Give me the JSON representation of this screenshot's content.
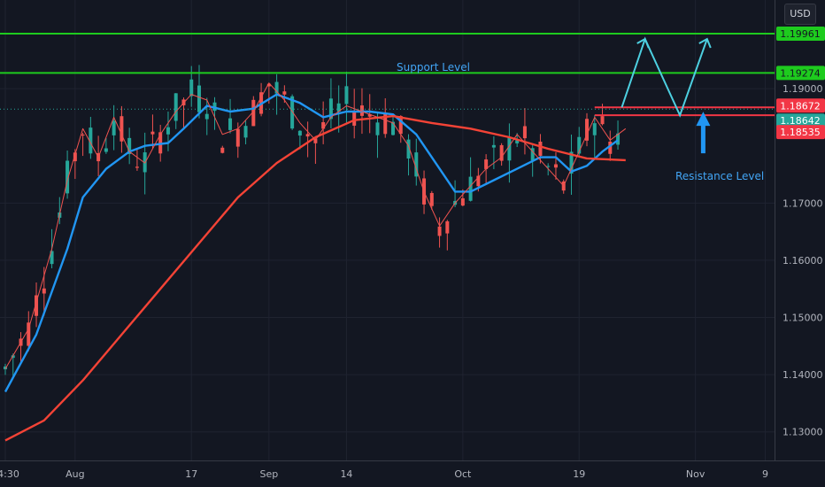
{
  "currency_button": "USD",
  "chart_data": {
    "type": "candlestick",
    "y_range": [
      1.125,
      1.2055
    ],
    "y_ticks": [
      {
        "value": 1.19,
        "label": "1.19000"
      },
      {
        "value": 1.17,
        "label": "1.17000"
      },
      {
        "value": 1.16,
        "label": "1.16000"
      },
      {
        "value": 1.15,
        "label": "1.15000"
      },
      {
        "value": 1.14,
        "label": "1.14000"
      },
      {
        "value": 1.13,
        "label": "1.13000"
      }
    ],
    "x_ticks": [
      {
        "index": 0,
        "label": "14:30"
      },
      {
        "index": 9,
        "label": "Aug"
      },
      {
        "index": 24,
        "label": "17"
      },
      {
        "index": 34,
        "label": "Sep"
      },
      {
        "index": 44,
        "label": "14"
      },
      {
        "index": 59,
        "label": "Oct"
      },
      {
        "index": 74,
        "label": "19"
      },
      {
        "index": 89,
        "label": "Nov"
      },
      {
        "index": 98,
        "label": "9"
      }
    ],
    "series": [
      {
        "color": "#2196f3",
        "width": 2.4,
        "points": [
          [
            0,
            1.137
          ],
          [
            4,
            1.147
          ],
          [
            8,
            1.162
          ],
          [
            10,
            1.171
          ],
          [
            13,
            1.176
          ],
          [
            16,
            1.179
          ],
          [
            18,
            1.18
          ],
          [
            21,
            1.1805
          ],
          [
            23,
            1.183
          ],
          [
            26,
            1.187
          ],
          [
            29,
            1.186
          ],
          [
            32,
            1.1865
          ],
          [
            35,
            1.189
          ],
          [
            38,
            1.1875
          ],
          [
            41,
            1.185
          ],
          [
            44,
            1.186
          ],
          [
            47,
            1.186
          ],
          [
            50,
            1.1855
          ],
          [
            53,
            1.182
          ],
          [
            56,
            1.176
          ],
          [
            58,
            1.172
          ],
          [
            60,
            1.172
          ],
          [
            63,
            1.174
          ],
          [
            66,
            1.176
          ],
          [
            69,
            1.178
          ],
          [
            71,
            1.178
          ],
          [
            73,
            1.1755
          ],
          [
            75,
            1.1765
          ],
          [
            77,
            1.179
          ],
          [
            79,
            1.181
          ]
        ]
      },
      {
        "color": "#f44336",
        "width": 2.4,
        "points": [
          [
            0,
            1.1285
          ],
          [
            5,
            1.132
          ],
          [
            10,
            1.139
          ],
          [
            15,
            1.147
          ],
          [
            20,
            1.155
          ],
          [
            25,
            1.163
          ],
          [
            30,
            1.171
          ],
          [
            35,
            1.177
          ],
          [
            40,
            1.1815
          ],
          [
            45,
            1.1845
          ],
          [
            50,
            1.1852
          ],
          [
            55,
            1.184
          ],
          [
            60,
            1.183
          ],
          [
            65,
            1.1815
          ],
          [
            70,
            1.1795
          ],
          [
            75,
            1.1778
          ],
          [
            80,
            1.1775
          ]
        ]
      },
      {
        "color": "#ef5350",
        "width": 1,
        "points": [
          [
            0,
            1.141
          ],
          [
            3,
            1.148
          ],
          [
            6,
            1.162
          ],
          [
            8,
            1.174
          ],
          [
            10,
            1.183
          ],
          [
            12,
            1.178
          ],
          [
            14,
            1.185
          ],
          [
            16,
            1.179
          ],
          [
            18,
            1.177
          ],
          [
            20,
            1.182
          ],
          [
            22,
            1.186
          ],
          [
            24,
            1.189
          ],
          [
            26,
            1.188
          ],
          [
            28,
            1.182
          ],
          [
            30,
            1.183
          ],
          [
            32,
            1.186
          ],
          [
            34,
            1.191
          ],
          [
            36,
            1.188
          ],
          [
            38,
            1.184
          ],
          [
            40,
            1.181
          ],
          [
            42,
            1.185
          ],
          [
            44,
            1.187
          ],
          [
            46,
            1.186
          ],
          [
            48,
            1.185
          ],
          [
            50,
            1.184
          ],
          [
            52,
            1.18
          ],
          [
            54,
            1.172
          ],
          [
            56,
            1.166
          ],
          [
            58,
            1.17
          ],
          [
            60,
            1.173
          ],
          [
            62,
            1.176
          ],
          [
            64,
            1.178
          ],
          [
            66,
            1.182
          ],
          [
            68,
            1.179
          ],
          [
            70,
            1.176
          ],
          [
            72,
            1.173
          ],
          [
            74,
            1.179
          ],
          [
            76,
            1.185
          ],
          [
            78,
            1.181
          ],
          [
            80,
            1.183
          ]
        ]
      }
    ],
    "levels": [
      {
        "value": 1.19961,
        "label": "1.19961",
        "line_color": "#1ecb1e",
        "badge_color": "#1ecb1e",
        "text_color": "#131722"
      },
      {
        "value": 1.19274,
        "label": "1.19274",
        "line_color": "#1ecb1e",
        "badge_color": "#1ecb1e",
        "text_color": "#131722"
      },
      {
        "value": 1.18672,
        "label": "1.18672",
        "line_color": "#f23645",
        "badge_color": "#f23645",
        "text_color": "#ffffff"
      },
      {
        "value": 1.18535,
        "label": "1.18535",
        "line_color": "#f23645",
        "badge_color": "#f23645",
        "text_color": "#ffffff"
      }
    ],
    "current_price": {
      "value": 1.18642,
      "label": "1.18642",
      "color": "#26a69a"
    },
    "annotations": [
      {
        "text": "Support Level",
        "color": "#42a5f5"
      },
      {
        "text": "Resistance Level",
        "color": "#42a5f5"
      }
    ],
    "projection_color": "#4dd0e1",
    "arrow_color": "#2196f3",
    "colors": {
      "up": "#26a69a",
      "down": "#ef5350"
    }
  }
}
